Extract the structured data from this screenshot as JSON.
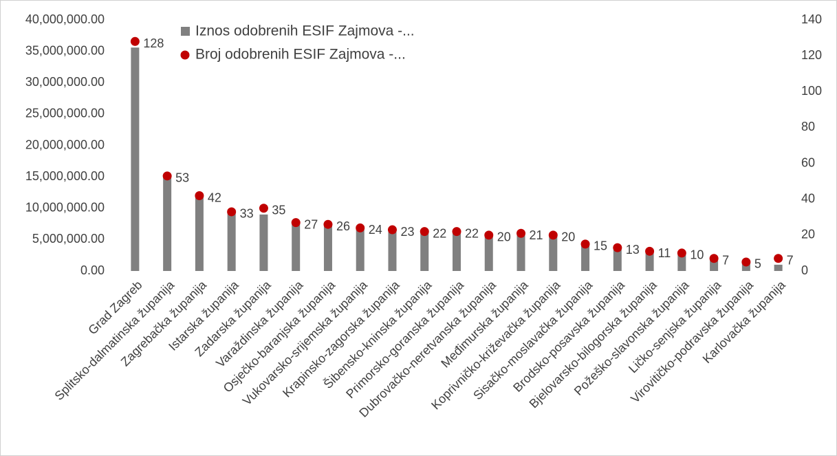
{
  "chart_data": {
    "type": "bar",
    "categories": [
      "Grad Zagreb",
      "Splitsko-dalmatinska županija",
      "Zagrebačka županija",
      "Istarska županija",
      "Zadarska županija",
      "Varaždinska županija",
      "Osječko-baranjska županija",
      "Vukovarsko-srijemska županija",
      "Krapinsko-zagorska županija",
      "Šibensko-kninska županija",
      "Primorsko-goranska županija",
      "Dubrovačko-neretvanska županija",
      "Međimurska županija",
      "Koprivničko-križevačka županija",
      "Sisačko-moslavačka županija",
      "Brodsko-posavska županija",
      "Bjelovarsko-bilogorska županija",
      "Požeško-slavonska županija",
      "Ličko-senjska županija",
      "Virovitičko-podravska županija",
      "Karlovačka županija"
    ],
    "series": [
      {
        "name": "Iznos odobrenih ESIF Zajmova -...",
        "color": "#808080",
        "type": "bar",
        "values": [
          35600000,
          15000000,
          12100000,
          9400000,
          9000000,
          7900000,
          7500000,
          7200000,
          6400000,
          6200000,
          6200000,
          5900000,
          5900000,
          5600000,
          4300000,
          3700000,
          3100000,
          2600000,
          1700000,
          1300000,
          1000000
        ]
      },
      {
        "name": "Broj odobrenih ESIF Zajmova -...",
        "color": "#c00000",
        "type": "scatter",
        "axis": "y2",
        "values": [
          128,
          53,
          42,
          33,
          35,
          27,
          26,
          24,
          23,
          22,
          22,
          20,
          21,
          20,
          15,
          13,
          11,
          10,
          7,
          5,
          7
        ]
      }
    ],
    "ylim": [
      0,
      40000000
    ],
    "yticks": [
      {
        "value": 0,
        "label": "0.00"
      },
      {
        "value": 5000000,
        "label": "5,000,000.00"
      },
      {
        "value": 10000000,
        "label": "10,000,000.00"
      },
      {
        "value": 15000000,
        "label": "15,000,000.00"
      },
      {
        "value": 20000000,
        "label": "20,000,000.00"
      },
      {
        "value": 25000000,
        "label": "25,000,000.00"
      },
      {
        "value": 30000000,
        "label": "30,000,000.00"
      },
      {
        "value": 35000000,
        "label": "35,000,000.00"
      },
      {
        "value": 40000000,
        "label": "40,000,000.00"
      }
    ],
    "y2lim": [
      0,
      140
    ],
    "y2ticks": [
      0,
      20,
      40,
      60,
      80,
      100,
      120,
      140
    ],
    "grid": false,
    "legend": "top"
  }
}
